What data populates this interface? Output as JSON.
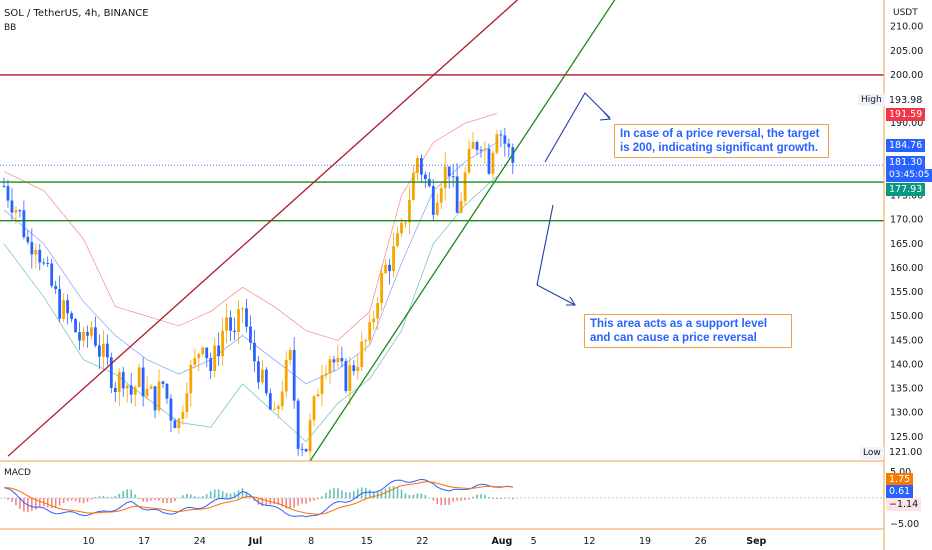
{
  "header": {
    "symbol": "SOL / TetherUS, 4h, BINANCE",
    "indicator": "BB",
    "currency": "USDT"
  },
  "macd_label": "MACD",
  "annotations": {
    "upper": "In case of a price reversal, the target is 200, indicating significant growth.",
    "lower": "This area acts as a support level and can cause a price reversal"
  },
  "labels": {
    "high": "High",
    "low": "Low"
  },
  "price_badges": [
    {
      "text": "193.98",
      "value": 193.98,
      "bg": "#ffffff",
      "fg": "#131722"
    },
    {
      "text": "191.59",
      "value": 191.59,
      "bg": "#f23645",
      "fg": "#ffffff"
    },
    {
      "text": "184.76",
      "value": 184.76,
      "bg": "#2962ff",
      "fg": "#ffffff"
    },
    {
      "text": "181.30",
      "value": 181.3,
      "bg": "#2962ff",
      "fg": "#ffffff",
      "countdown": "03:45:05"
    },
    {
      "text": "177.93",
      "value": 177.93,
      "bg": "#089981",
      "fg": "#ffffff"
    },
    {
      "text": "121.00",
      "value": 121.0,
      "bg": "#ffffff",
      "fg": "#131722"
    }
  ],
  "macd_badges": [
    {
      "text": "1.75",
      "value": 1.75,
      "bg": "#f57c00",
      "fg": "#ffffff"
    },
    {
      "text": "0.61",
      "value": 0.61,
      "bg": "#2962ff",
      "fg": "#ffffff"
    },
    {
      "text": "−1.14",
      "value": -1.14,
      "bg": "#fce4e6",
      "fg": "#131722"
    }
  ],
  "colors": {
    "up": "#f7a600",
    "down": "#2962ff",
    "bb_upper": "#f23645",
    "bb_lower": "#089981",
    "bb_mid": "#2962ff",
    "resistance": "#b0172b",
    "support": "#1b8a1b",
    "arrow": "#1e3fa8"
  },
  "chart_data": {
    "type": "candlestick",
    "symbol": "SOL / TetherUS",
    "timeframe": "4h",
    "exchange": "BINANCE",
    "ylim": [
      120,
      215
    ],
    "y_ticks": [
      "125.00",
      "130.00",
      "135.00",
      "140.00",
      "145.00",
      "150.00",
      "155.00",
      "160.00",
      "165.00",
      "170.00",
      "175.00",
      "180.00",
      "185.00",
      "190.00",
      "195.00",
      "200.00",
      "205.00",
      "210.00"
    ],
    "y_tick_values": [
      125,
      130,
      135,
      140,
      145,
      150,
      155,
      160,
      165,
      170,
      175,
      180,
      185,
      190,
      195,
      200,
      205,
      210
    ],
    "x_ticks": [
      "10",
      "17",
      "24",
      "Jul",
      "8",
      "15",
      "22",
      "Aug",
      "5",
      "12",
      "19",
      "26",
      "Sep"
    ],
    "x_tick_days": [
      10,
      17,
      24,
      31,
      38,
      45,
      52,
      62,
      66,
      73,
      80,
      87,
      94
    ],
    "horizontal_levels": [
      {
        "value": 200,
        "role": "resistance"
      },
      {
        "value": 177.8,
        "role": "support"
      },
      {
        "value": 169.8,
        "role": "support"
      }
    ],
    "trendlines": [
      {
        "role": "resistance",
        "from": {
          "day": 0.5,
          "price": 121
        },
        "to": {
          "day": 71,
          "price": 225
        }
      },
      {
        "role": "support",
        "from": {
          "day": 38.5,
          "price": 120
        },
        "to": {
          "day": 77,
          "price": 216
        }
      }
    ],
    "bb_points": [
      {
        "day": 0,
        "upper": 180,
        "mid": 172,
        "lower": 165
      },
      {
        "day": 5,
        "upper": 176,
        "mid": 165,
        "lower": 154
      },
      {
        "day": 10,
        "upper": 166,
        "mid": 153,
        "lower": 141
      },
      {
        "day": 14,
        "upper": 152,
        "mid": 146,
        "lower": 138
      },
      {
        "day": 18,
        "upper": 150,
        "mid": 141,
        "lower": 133
      },
      {
        "day": 22,
        "upper": 148,
        "mid": 138,
        "lower": 128
      },
      {
        "day": 26,
        "upper": 151,
        "mid": 141,
        "lower": 127
      },
      {
        "day": 30,
        "upper": 156,
        "mid": 146,
        "lower": 136
      },
      {
        "day": 34,
        "upper": 152,
        "mid": 141,
        "lower": 130
      },
      {
        "day": 38,
        "upper": 147,
        "mid": 136,
        "lower": 124
      },
      {
        "day": 42,
        "upper": 145,
        "mid": 139,
        "lower": 132
      },
      {
        "day": 46,
        "upper": 151,
        "mid": 144,
        "lower": 137
      },
      {
        "day": 50,
        "upper": 175,
        "mid": 161,
        "lower": 147
      },
      {
        "day": 54,
        "upper": 186,
        "mid": 176,
        "lower": 165
      },
      {
        "day": 58,
        "upper": 190,
        "mid": 182,
        "lower": 173
      },
      {
        "day": 62,
        "upper": 192,
        "mid": 186,
        "lower": 179
      }
    ],
    "price_points": [
      [
        0,
        177
      ],
      [
        1,
        174
      ],
      [
        2,
        171
      ],
      [
        3,
        165
      ],
      [
        4,
        166
      ],
      [
        5,
        160
      ],
      [
        6,
        156
      ],
      [
        7,
        152
      ],
      [
        8,
        150
      ],
      [
        9,
        147
      ],
      [
        10,
        144
      ],
      [
        11,
        148
      ],
      [
        12,
        143
      ],
      [
        13,
        140
      ],
      [
        14,
        136
      ],
      [
        15,
        138
      ],
      [
        16,
        134
      ],
      [
        17,
        137
      ],
      [
        18,
        134
      ],
      [
        19,
        133
      ],
      [
        20,
        136
      ],
      [
        21,
        130
      ],
      [
        22,
        128
      ],
      [
        23,
        137
      ],
      [
        24,
        140
      ],
      [
        25,
        146
      ],
      [
        26,
        139
      ],
      [
        27,
        144
      ],
      [
        28,
        150
      ],
      [
        29,
        145
      ],
      [
        30,
        152
      ],
      [
        31,
        143
      ],
      [
        32,
        139
      ],
      [
        33,
        133
      ],
      [
        34,
        128
      ],
      [
        35,
        136
      ],
      [
        36,
        141
      ],
      [
        37,
        125
      ],
      [
        38,
        123
      ],
      [
        39,
        131
      ],
      [
        40,
        140
      ],
      [
        41,
        142
      ],
      [
        42,
        139
      ],
      [
        43,
        137
      ],
      [
        44,
        140
      ],
      [
        45,
        143
      ],
      [
        46,
        146
      ],
      [
        47,
        155
      ],
      [
        48,
        160
      ],
      [
        49,
        163
      ],
      [
        50,
        167
      ],
      [
        51,
        175
      ],
      [
        52,
        183
      ],
      [
        53,
        178
      ],
      [
        54,
        174
      ],
      [
        55,
        179
      ],
      [
        56,
        181
      ],
      [
        57,
        171
      ],
      [
        58,
        179
      ],
      [
        59,
        185
      ],
      [
        60,
        187
      ],
      [
        61,
        182
      ],
      [
        62,
        190
      ],
      [
        63,
        186
      ],
      [
        64,
        182
      ]
    ],
    "macd": {
      "ylim": [
        -5.5,
        6
      ],
      "y_ticks": [
        "5.00",
        "−5.00"
      ],
      "y_tick_values": [
        5,
        -5
      ],
      "macd_line": 1.75,
      "signal_line": 0.61,
      "histogram": -1.14,
      "points": [
        [
          0,
          2
        ],
        [
          4,
          -2
        ],
        [
          8,
          -3
        ],
        [
          12,
          -3
        ],
        [
          16,
          -1
        ],
        [
          20,
          -3
        ],
        [
          24,
          -2
        ],
        [
          28,
          0
        ],
        [
          30,
          1
        ],
        [
          34,
          -2
        ],
        [
          38,
          -4
        ],
        [
          42,
          -1
        ],
        [
          46,
          1
        ],
        [
          50,
          3.5
        ],
        [
          54,
          3
        ],
        [
          56,
          1
        ],
        [
          58,
          2
        ],
        [
          62,
          2.5
        ],
        [
          64,
          1.7
        ]
      ]
    }
  }
}
